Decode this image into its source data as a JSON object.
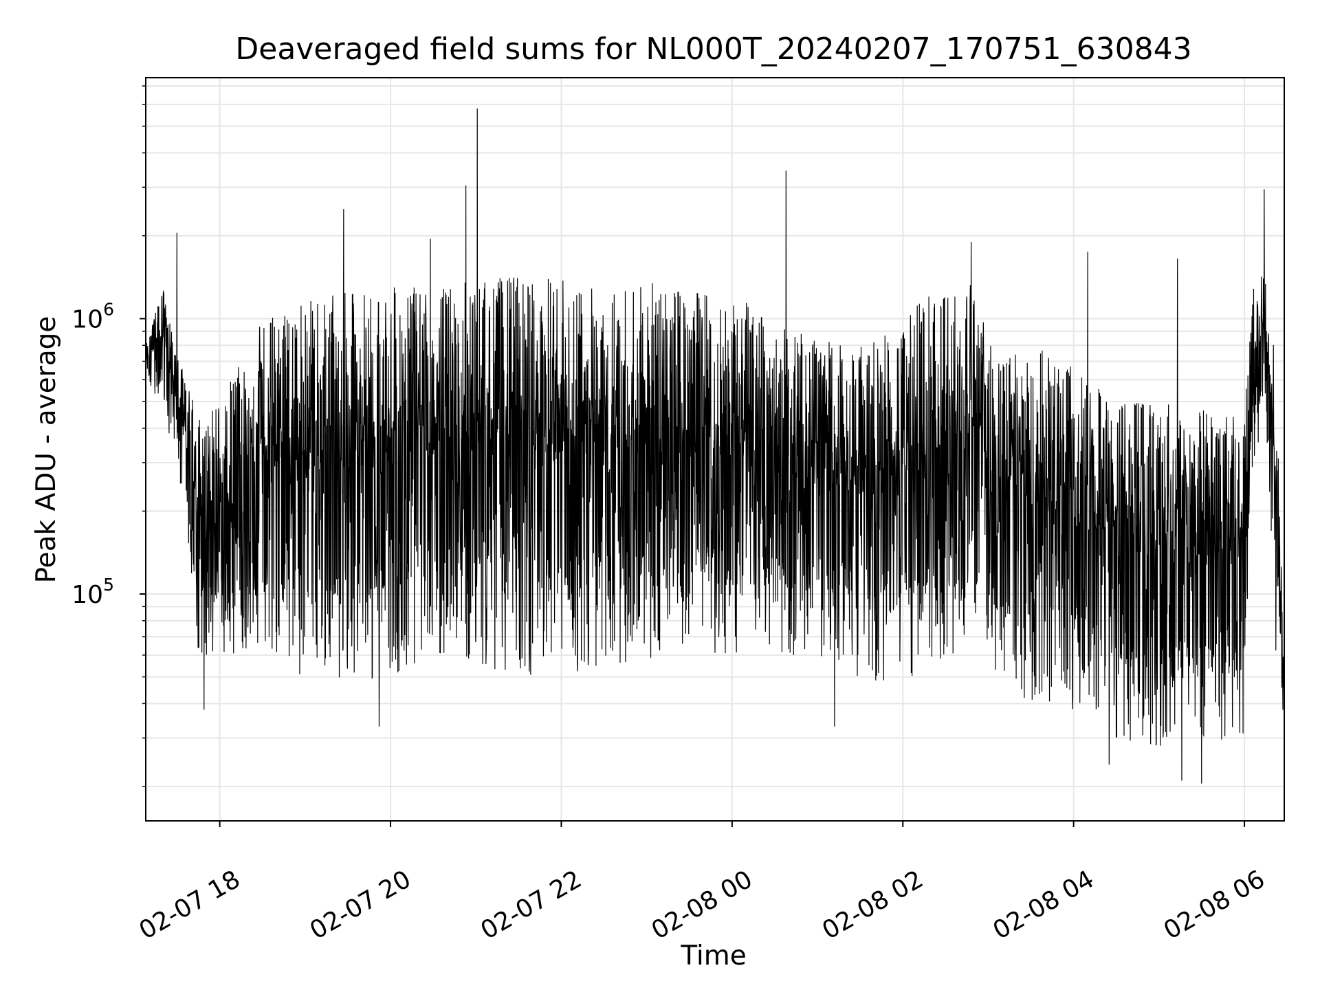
{
  "chart_data": {
    "type": "line",
    "title": "Deaveraged field sums for NL000T_20240207_170751_630843",
    "xlabel": "Time",
    "ylabel": "Peak ADU - average",
    "yscale": "log",
    "ylim": [
      15000,
      7500000
    ],
    "xlim": [
      "2024-02-07 17:08",
      "2024-02-08 06:28"
    ],
    "grid": true,
    "legend": false,
    "line_color": "#000000",
    "x_ticks": [
      "02-07 18",
      "02-07 20",
      "02-07 22",
      "02-08 00",
      "02-08 02",
      "02-08 04",
      "02-08 06"
    ],
    "y_ticks": [
      {
        "base": "10",
        "exp": "5",
        "value": 100000
      },
      {
        "base": "10",
        "exp": "6",
        "value": 1000000
      }
    ],
    "series": [
      {
        "envelope": [
          {
            "t": "2024-02-07 17:08",
            "hi": 800000,
            "lo": 620000
          },
          {
            "t": "2024-02-07 17:20",
            "hi": 1300000,
            "lo": 450000
          },
          {
            "t": "2024-02-07 17:32",
            "hi": 700000,
            "lo": 250000
          },
          {
            "t": "2024-02-07 17:45",
            "hi": 450000,
            "lo": 60000
          },
          {
            "t": "2024-02-07 18:00",
            "hi": 500000,
            "lo": 60000
          },
          {
            "t": "2024-02-07 18:30",
            "hi": 1000000,
            "lo": 60000
          },
          {
            "t": "2024-02-07 19:00",
            "hi": 1150000,
            "lo": 50000
          },
          {
            "t": "2024-02-07 19:30",
            "hi": 1250000,
            "lo": 48000
          },
          {
            "t": "2024-02-07 20:00",
            "hi": 1300000,
            "lo": 48000
          },
          {
            "t": "2024-02-07 20:30",
            "hi": 1300000,
            "lo": 58000
          },
          {
            "t": "2024-02-07 21:00",
            "hi": 1400000,
            "lo": 55000
          },
          {
            "t": "2024-02-07 21:30",
            "hi": 1450000,
            "lo": 50000
          },
          {
            "t": "2024-02-07 22:00",
            "hi": 1400000,
            "lo": 50000
          },
          {
            "t": "2024-02-07 22:30",
            "hi": 1300000,
            "lo": 55000
          },
          {
            "t": "2024-02-07 23:00",
            "hi": 1350000,
            "lo": 55000
          },
          {
            "t": "2024-02-07 23:30",
            "hi": 1300000,
            "lo": 58000
          },
          {
            "t": "2024-02-08 00:00",
            "hi": 1250000,
            "lo": 58000
          },
          {
            "t": "2024-02-08 00:30",
            "hi": 950000,
            "lo": 60000
          },
          {
            "t": "2024-02-08 01:00",
            "hi": 850000,
            "lo": 60000
          },
          {
            "t": "2024-02-08 01:30",
            "hi": 800000,
            "lo": 48000
          },
          {
            "t": "2024-02-08 02:00",
            "hi": 1050000,
            "lo": 48000
          },
          {
            "t": "2024-02-08 02:30",
            "hi": 1350000,
            "lo": 55000
          },
          {
            "t": "2024-02-08 02:50",
            "hi": 1400000,
            "lo": 80000
          },
          {
            "t": "2024-02-08 03:05",
            "hi": 700000,
            "lo": 50000
          },
          {
            "t": "2024-02-08 03:30",
            "hi": 800000,
            "lo": 40000
          },
          {
            "t": "2024-02-08 04:00",
            "hi": 700000,
            "lo": 38000
          },
          {
            "t": "2024-02-08 04:30",
            "hi": 520000,
            "lo": 30000
          },
          {
            "t": "2024-02-08 05:00",
            "hi": 500000,
            "lo": 28000
          },
          {
            "t": "2024-02-08 05:30",
            "hi": 480000,
            "lo": 28000
          },
          {
            "t": "2024-02-08 06:00",
            "hi": 450000,
            "lo": 30000
          },
          {
            "t": "2024-02-08 06:05",
            "hi": 1300000,
            "lo": 280000
          },
          {
            "t": "2024-02-08 06:15",
            "hi": 1600000,
            "lo": 400000
          },
          {
            "t": "2024-02-08 06:22",
            "hi": 700000,
            "lo": 60000
          },
          {
            "t": "2024-02-08 06:28",
            "hi": 50000,
            "lo": 40000
          }
        ],
        "spikes": [
          {
            "t": "2024-02-07 17:30",
            "v": 2050000
          },
          {
            "t": "2024-02-07 19:27",
            "v": 2500000
          },
          {
            "t": "2024-02-07 20:28",
            "v": 1950000
          },
          {
            "t": "2024-02-07 20:53",
            "v": 3050000
          },
          {
            "t": "2024-02-07 21:01",
            "v": 5800000
          },
          {
            "t": "2024-02-08 00:38",
            "v": 3450000
          },
          {
            "t": "2024-02-08 02:48",
            "v": 1900000
          },
          {
            "t": "2024-02-08 04:10",
            "v": 1750000
          },
          {
            "t": "2024-02-08 05:13",
            "v": 1650000
          },
          {
            "t": "2024-02-08 06:14",
            "v": 2950000
          }
        ],
        "dips": [
          {
            "t": "2024-02-07 17:49",
            "v": 38000
          },
          {
            "t": "2024-02-07 19:52",
            "v": 33000
          },
          {
            "t": "2024-02-08 01:12",
            "v": 33000
          },
          {
            "t": "2024-02-08 04:25",
            "v": 24000
          },
          {
            "t": "2024-02-08 05:16",
            "v": 21000
          },
          {
            "t": "2024-02-08 05:30",
            "v": 20500
          },
          {
            "t": "2024-02-08 06:27",
            "v": 38000
          }
        ]
      }
    ]
  }
}
